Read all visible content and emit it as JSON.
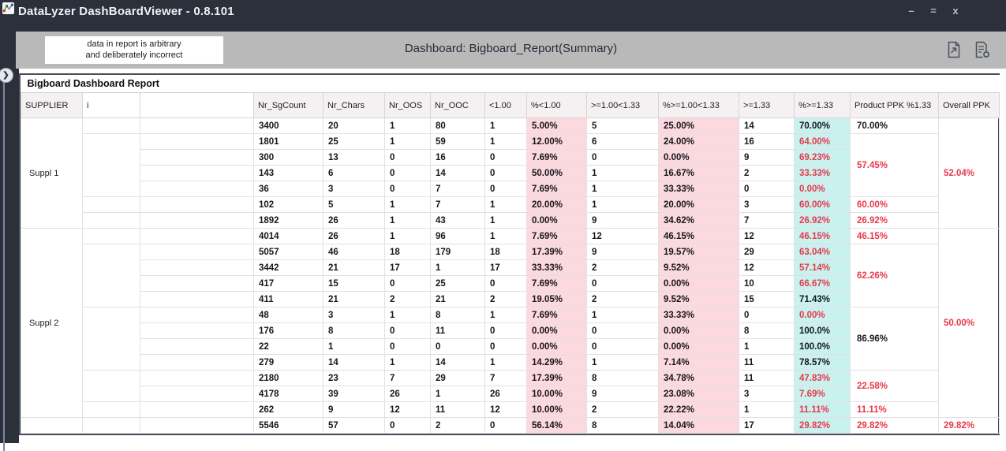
{
  "window": {
    "title": "DataLyzer DashBoardViewer - 0.8.101",
    "controls": [
      {
        "name": "minimize",
        "glyph": "–"
      },
      {
        "name": "maximize",
        "glyph": "="
      },
      {
        "name": "close",
        "glyph": "x"
      }
    ],
    "app_icon": "line-chart-icon"
  },
  "sidebar": {
    "toggle_glyph": "❯",
    "toggle_icon": "chevron-right-icon"
  },
  "header": {
    "note": {
      "line1": "data in report is arbitrary",
      "line2": "and deliberately incorrect"
    },
    "dashboard_title": "Dashboard: Bigboard_Report(Summary)",
    "icons": [
      "document-export-icon",
      "document-settings-icon"
    ]
  },
  "report": {
    "title": "Bigboard Dashboard Report",
    "columns": [
      "SUPPLIER",
      "i",
      "",
      "Nr_SgCount",
      "Nr_Chars",
      "Nr_OOS",
      "Nr_OOC",
      "<1.00",
      "%<1.00",
      ">=1.00<1.33",
      "%>=1.00<1.33",
      ">=1.33",
      "%>=1.33",
      "Product PPK %1.33",
      "Overall PPK"
    ],
    "supplier_groups": [
      {
        "label": "Suppl 1",
        "span": 7
      },
      {
        "label": "Suppl 2",
        "span": 12
      },
      {
        "label": "",
        "span": 1
      }
    ],
    "group_column_spans": [
      1,
      4,
      1,
      1,
      1,
      4,
      4,
      2,
      1,
      1
    ],
    "product_ppk_groups": [
      {
        "value": "70.00%",
        "span": 1,
        "red": false
      },
      {
        "value": "57.45%",
        "span": 4,
        "red": true
      },
      {
        "value": "60.00%",
        "span": 1,
        "red": true
      },
      {
        "value": "26.92%",
        "span": 1,
        "red": true
      },
      {
        "value": "46.15%",
        "span": 1,
        "red": true
      },
      {
        "value": "62.26%",
        "span": 4,
        "red": true
      },
      {
        "value": "86.96%",
        "span": 4,
        "red": false
      },
      {
        "value": "22.58%",
        "span": 2,
        "red": true
      },
      {
        "value": "11.11%",
        "span": 1,
        "red": true
      },
      {
        "value": "29.82%",
        "span": 1,
        "red": true
      }
    ],
    "overall_ppk_groups": [
      {
        "value": "52.04%",
        "span": 7,
        "red": true
      },
      {
        "value": "50.00%",
        "span": 12,
        "red": true
      },
      {
        "value": "29.82%",
        "span": 1,
        "red": true
      }
    ],
    "rows": [
      {
        "v": [
          "3400",
          "20",
          "1",
          "80",
          "1",
          "5.00%",
          "5",
          "25.00%",
          "14",
          "70.00%"
        ],
        "r": false
      },
      {
        "v": [
          "1801",
          "25",
          "1",
          "59",
          "1",
          "12.00%",
          "6",
          "24.00%",
          "16",
          "64.00%"
        ],
        "r": true
      },
      {
        "v": [
          "300",
          "13",
          "0",
          "16",
          "0",
          "7.69%",
          "0",
          "0.00%",
          "9",
          "69.23%"
        ],
        "r": true
      },
      {
        "v": [
          "143",
          "6",
          "0",
          "14",
          "0",
          "50.00%",
          "1",
          "16.67%",
          "2",
          "33.33%"
        ],
        "r": true
      },
      {
        "v": [
          "36",
          "3",
          "0",
          "7",
          "0",
          "7.69%",
          "1",
          "33.33%",
          "0",
          "0.00%"
        ],
        "r": true
      },
      {
        "v": [
          "102",
          "5",
          "1",
          "7",
          "1",
          "20.00%",
          "1",
          "20.00%",
          "3",
          "60.00%"
        ],
        "r": true
      },
      {
        "v": [
          "1892",
          "26",
          "1",
          "43",
          "1",
          "0.00%",
          "9",
          "34.62%",
          "7",
          "26.92%"
        ],
        "r": true
      },
      {
        "v": [
          "4014",
          "26",
          "1",
          "96",
          "1",
          "7.69%",
          "12",
          "46.15%",
          "12",
          "46.15%"
        ],
        "r": true
      },
      {
        "v": [
          "5057",
          "46",
          "18",
          "179",
          "18",
          "17.39%",
          "9",
          "19.57%",
          "29",
          "63.04%"
        ],
        "r": true
      },
      {
        "v": [
          "3442",
          "21",
          "17",
          "1",
          "17",
          "33.33%",
          "2",
          "9.52%",
          "12",
          "57.14%"
        ],
        "r": true
      },
      {
        "v": [
          "417",
          "15",
          "0",
          "25",
          "0",
          "7.69%",
          "0",
          "0.00%",
          "10",
          "66.67%"
        ],
        "r": true
      },
      {
        "v": [
          "411",
          "21",
          "2",
          "21",
          "2",
          "19.05%",
          "2",
          "9.52%",
          "15",
          "71.43%"
        ],
        "r": false
      },
      {
        "v": [
          "48",
          "3",
          "1",
          "8",
          "1",
          "7.69%",
          "1",
          "33.33%",
          "0",
          "0.00%"
        ],
        "r": true
      },
      {
        "v": [
          "176",
          "8",
          "0",
          "11",
          "0",
          "0.00%",
          "0",
          "0.00%",
          "8",
          "100.0%"
        ],
        "r": false
      },
      {
        "v": [
          "22",
          "1",
          "0",
          "0",
          "0",
          "0.00%",
          "0",
          "0.00%",
          "1",
          "100.0%"
        ],
        "r": false
      },
      {
        "v": [
          "279",
          "14",
          "1",
          "14",
          "1",
          "14.29%",
          "1",
          "7.14%",
          "11",
          "78.57%"
        ],
        "r": false
      },
      {
        "v": [
          "2180",
          "23",
          "7",
          "29",
          "7",
          "17.39%",
          "8",
          "34.78%",
          "11",
          "47.83%"
        ],
        "r": true
      },
      {
        "v": [
          "4178",
          "39",
          "26",
          "1",
          "26",
          "10.00%",
          "9",
          "23.08%",
          "3",
          "7.69%"
        ],
        "r": true
      },
      {
        "v": [
          "262",
          "9",
          "12",
          "11",
          "12",
          "10.00%",
          "2",
          "22.22%",
          "1",
          "11.11%"
        ],
        "r": true
      },
      {
        "v": [
          "5546",
          "57",
          "0",
          "2",
          "0",
          "56.14%",
          "8",
          "14.04%",
          "17",
          "29.82%"
        ],
        "r": true
      }
    ]
  },
  "colors": {
    "titlebar_bg": "#2b303b",
    "header_bar_bg": "#b9b9ba",
    "accent_red": "#e8394b",
    "pink_column_bg": "#fbd9de",
    "cyan_column_bg": "#c9f1ee"
  }
}
